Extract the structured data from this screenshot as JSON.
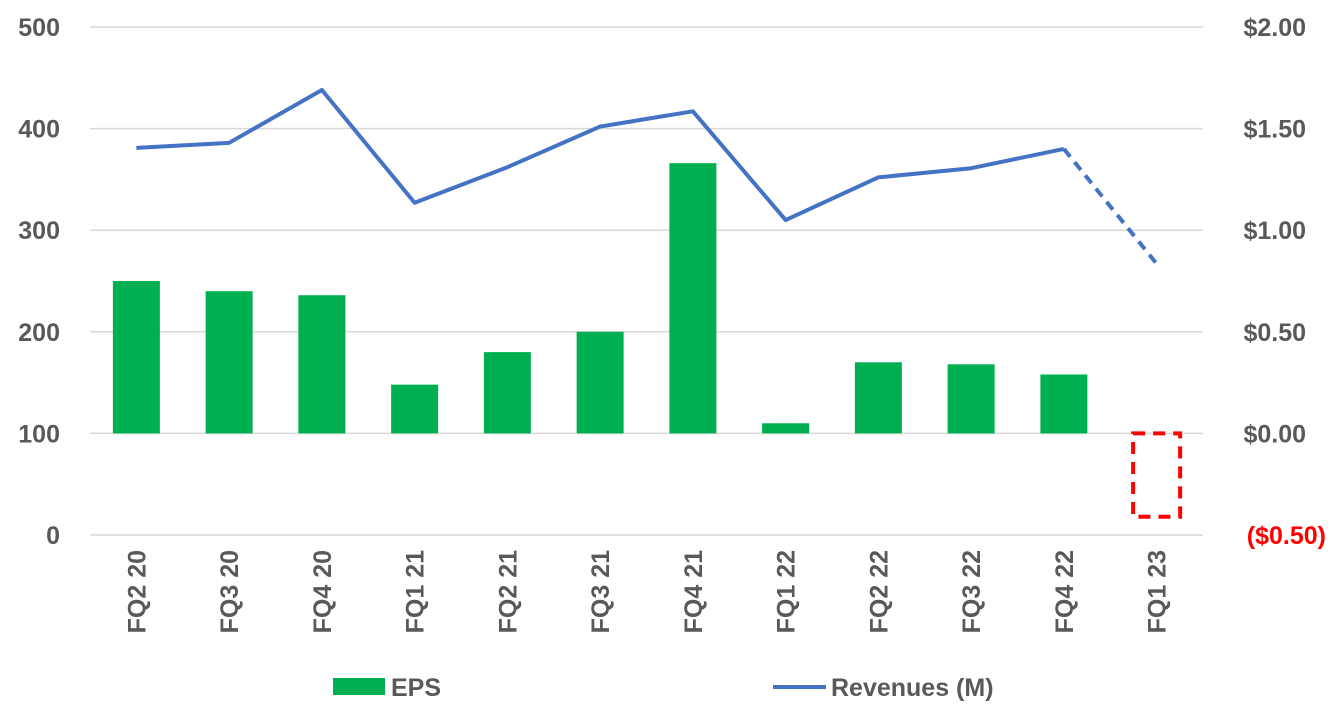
{
  "chart_data": {
    "type": "bar-line-combo",
    "categories": [
      "FQ2 20",
      "FQ3 20",
      "FQ4 20",
      "FQ1 21",
      "FQ2 21",
      "FQ3 21",
      "FQ4 21",
      "FQ1 22",
      "FQ2 22",
      "FQ3 22",
      "FQ4 22",
      "FQ1 23"
    ],
    "left_axis": {
      "ticks": [
        "0",
        "100",
        "200",
        "300",
        "400",
        "500"
      ],
      "tick_values": [
        0,
        100,
        200,
        300,
        400,
        500
      ],
      "ylim": [
        0,
        500
      ]
    },
    "right_axis": {
      "ticks": [
        "($0.50)",
        "$0.00",
        "$0.50",
        "$1.00",
        "$1.50",
        "$2.00"
      ],
      "tick_values": [
        -0.5,
        0,
        0.5,
        1.0,
        1.5,
        2.0
      ],
      "ylim": [
        -0.5,
        2.0
      ],
      "negative_tick_color": "#ff0000"
    },
    "series": [
      {
        "name": "EPS",
        "kind": "bar",
        "axis": "right",
        "color": "#00b050",
        "values": [
          0.75,
          0.7,
          0.68,
          0.24,
          0.4,
          0.5,
          1.33,
          0.05,
          0.35,
          0.34,
          0.29,
          null
        ]
      },
      {
        "name": "Revenues (M)",
        "kind": "line",
        "axis": "left",
        "color": "#4472c4",
        "values": [
          381,
          386,
          438,
          327,
          362,
          402,
          417,
          310,
          352,
          361,
          380,
          267
        ],
        "dashed_last_segment": true
      }
    ],
    "annotation": {
      "type": "dashed-box",
      "category": "FQ1 23",
      "axis": "right",
      "from": 0.0,
      "to": -0.41,
      "color": "#ff0000"
    },
    "grid": true,
    "legend": "bottom",
    "legend_entries": [
      "EPS",
      "Revenues (M)"
    ]
  }
}
